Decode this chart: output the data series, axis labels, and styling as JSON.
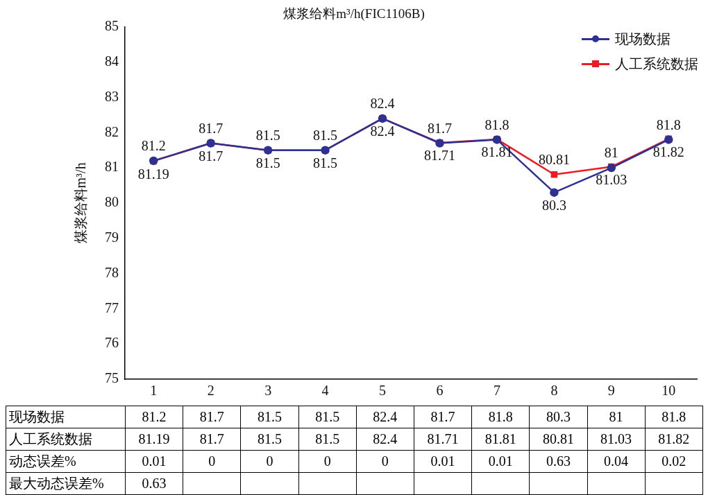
{
  "chart_data": {
    "type": "line",
    "title": "煤浆给料m³/h(FIC1106B)",
    "ylabel": "煤浆给料m³/h",
    "categories": [
      "1",
      "2",
      "3",
      "4",
      "5",
      "6",
      "7",
      "8",
      "9",
      "10"
    ],
    "series": [
      {
        "name": "现场数据",
        "color": "#2e3192",
        "marker": "circle",
        "values": [
          81.2,
          81.7,
          81.5,
          81.5,
          82.4,
          81.7,
          81.8,
          80.3,
          81,
          81.8
        ],
        "value_labels": [
          "81.2",
          "81.7",
          "81.5",
          "81.5",
          "82.4",
          "81.7",
          "81.8",
          "80.3",
          "81",
          "81.8"
        ]
      },
      {
        "name": "人工系统数据",
        "color": "#ed1c24",
        "marker": "square",
        "values": [
          81.19,
          81.7,
          81.5,
          81.5,
          82.4,
          81.71,
          81.81,
          80.81,
          81.03,
          81.82
        ],
        "value_labels": [
          "81.19",
          "81.7",
          "81.5",
          "81.5",
          "82.4",
          "81.71",
          "81.81",
          "80.81",
          "81.03",
          "81.82"
        ]
      }
    ],
    "ylim": [
      75,
      85
    ],
    "yticks": [
      75,
      76,
      77,
      78,
      79,
      80,
      81,
      82,
      83,
      84,
      85
    ],
    "grid": false,
    "legend": "top right",
    "annotations": [
      "现场数据",
      "81.2",
      "81.7",
      "81.5",
      "81.5",
      "82.4",
      "81.7",
      "81.8",
      "80.3",
      "81",
      "81.8",
      "人工系统数据",
      "81.19",
      "81.7",
      "81.5",
      "81.5",
      "82.4",
      "81.71",
      "81.81",
      "80.81",
      "81.03",
      "81.82",
      "动态误差%",
      "0.01",
      "0",
      "0",
      "0",
      "0",
      "0.01",
      "0.01",
      "0.63",
      "0.04",
      "0.02",
      "最大动态误差%",
      "0.63"
    ]
  }
}
